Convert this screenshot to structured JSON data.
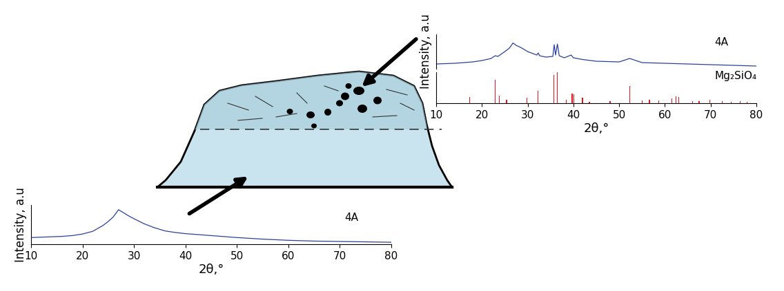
{
  "chart_data": [
    {
      "type": "line",
      "xlabel": "2θ,°",
      "ylabel": "Intensity, a.u",
      "x": [
        10,
        12,
        14,
        16,
        18,
        20,
        22,
        24,
        25,
        26,
        27,
        28,
        29,
        30,
        32,
        34,
        36,
        38,
        40,
        42,
        45,
        50,
        55,
        60,
        65,
        70,
        75,
        80
      ],
      "series": [
        {
          "name": "4A",
          "color": "#2b3f9e",
          "values": [
            17,
            18,
            19,
            20,
            22,
            26,
            33,
            48,
            58,
            70,
            88,
            80,
            72,
            65,
            52,
            42,
            34,
            30,
            27,
            25,
            22,
            17,
            13,
            10,
            8,
            7,
            6,
            5
          ]
        }
      ],
      "xlim": [
        10,
        80
      ],
      "xticks": [
        10,
        20,
        30,
        40,
        50,
        60,
        70,
        80
      ],
      "ylim": [
        0,
        100
      ],
      "tick_labels": "x"
    },
    {
      "type": "line",
      "ylabel": "Intensity, a.u",
      "x": [
        10,
        14,
        18,
        20,
        22,
        22.9,
        23.5,
        25,
        26,
        26.8,
        27.5,
        28.5,
        30,
        32,
        32.3,
        32.6,
        34,
        35.5,
        35.8,
        36.1,
        36.5,
        36.9,
        38,
        39.5,
        40,
        42,
        45,
        50,
        52.3,
        55,
        60,
        65,
        70,
        75,
        80
      ],
      "series": [
        {
          "name": "4A",
          "color": "#2b3f9e",
          "values": [
            14,
            16,
            20,
            24,
            30,
            38,
            36,
            50,
            60,
            75,
            68,
            62,
            50,
            40,
            46,
            38,
            34,
            36,
            70,
            40,
            72,
            38,
            32,
            40,
            32,
            27,
            22,
            20,
            30,
            18,
            16,
            14,
            12,
            10,
            8
          ]
        }
      ],
      "xlim": [
        10,
        80
      ],
      "ylim": [
        0,
        100
      ],
      "tick_labels": false
    },
    {
      "type": "bar",
      "xlabel": "2θ,°",
      "x": [
        17.3,
        22.9,
        23.8,
        25.4,
        29.8,
        32.3,
        35.7,
        36.5,
        38.4,
        39.7,
        40.1,
        42.0,
        43.5,
        48.0,
        52.3,
        55.0,
        56.6,
        58.7,
        61.5,
        62.4,
        63.0,
        66.0,
        67.5,
        69.8,
        72.5,
        74.5,
        76.5,
        78.0
      ],
      "series": [
        {
          "name": "Mg₂SiO₄",
          "color": "#e8141b",
          "values": [
            20,
            75,
            25,
            12,
            18,
            40,
            90,
            100,
            12,
            30,
            28,
            18,
            5,
            6,
            55,
            8,
            12,
            10,
            15,
            22,
            20,
            6,
            6,
            12,
            6,
            5,
            6,
            5
          ]
        }
      ],
      "xlim": [
        10,
        80
      ],
      "xticks": [
        10,
        20,
        30,
        40,
        50,
        60,
        70,
        80
      ],
      "ylim": [
        0,
        100
      ],
      "tick_labels": "x"
    }
  ]
}
